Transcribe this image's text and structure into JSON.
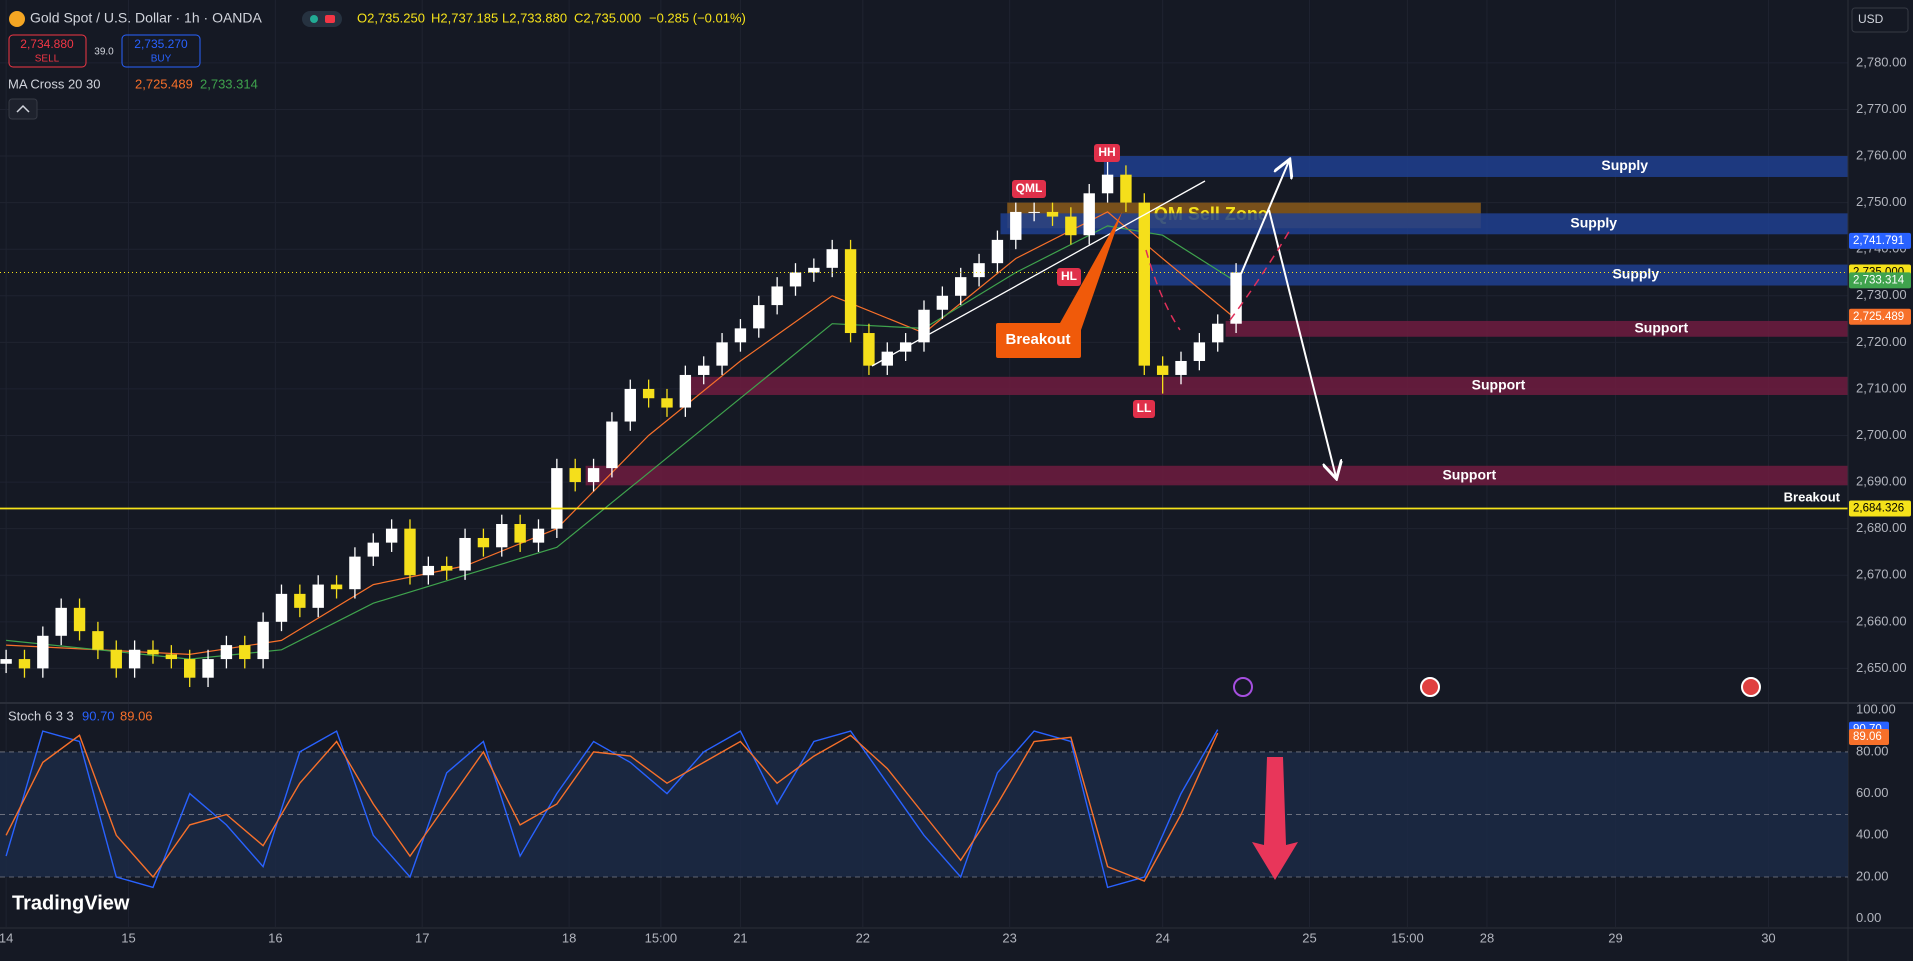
{
  "header": {
    "symbol": "Gold Spot / U.S. Dollar · 1h · OANDA",
    "open": "O2,735.250",
    "high": "H2,737.185",
    "low": "L2,733.880",
    "close": "C2,735.000",
    "change": "−0.285 (−0.01%)",
    "sell_price": "2,734.880",
    "sell": "SELL",
    "spread": "39.0",
    "buy_price": "2,735.270",
    "buy": "BUY",
    "indicator": "MA Cross 20 30",
    "ma_fast": "2,725.489",
    "ma_slow": "2,733.314",
    "stoch": "Stoch 6 3 3",
    "currency": "USD",
    "brand": "TradingView"
  },
  "annotations": {
    "hh": "HH",
    "qml": "QML",
    "hl": "HL",
    "ll": "LL",
    "breakout_callout": "Breakout",
    "breakout_line": "Breakout"
  },
  "chart_data": [
    {
      "type": "candlestick",
      "up_color": "#ffffff",
      "down_color": "#f5df1b",
      "grid": true,
      "xlim": [
        -1,
        301
      ],
      "xticks": [
        {
          "value": 0,
          "label": "14"
        },
        {
          "value": 20,
          "label": "15"
        },
        {
          "value": 44,
          "label": "16"
        },
        {
          "value": 68,
          "label": "17"
        },
        {
          "value": 92,
          "label": "18"
        },
        {
          "value": 107,
          "label": "15:00"
        },
        {
          "value": 120,
          "label": "21"
        },
        {
          "value": 140,
          "label": "22"
        },
        {
          "value": 164,
          "label": "23"
        },
        {
          "value": 189,
          "label": "24"
        },
        {
          "value": 213,
          "label": "25"
        },
        {
          "value": 229,
          "label": "15:00"
        },
        {
          "value": 242,
          "label": "28"
        },
        {
          "value": 263,
          "label": "29"
        },
        {
          "value": 288,
          "label": "30"
        }
      ],
      "ylim": [
        2643,
        2793.5
      ],
      "yticks": [
        {
          "value": 2650,
          "label": "2,650.00"
        },
        {
          "value": 2660,
          "label": "2,660.00"
        },
        {
          "value": 2670,
          "label": "2,670.00"
        },
        {
          "value": 2680,
          "label": "2,680.00"
        },
        {
          "value": 2690,
          "label": "2,690.00"
        },
        {
          "value": 2700,
          "label": "2,700.00"
        },
        {
          "value": 2710,
          "label": "2,710.00"
        },
        {
          "value": 2720,
          "label": "2,720.00"
        },
        {
          "value": 2730,
          "label": "2,730.00"
        },
        {
          "value": 2740,
          "label": "2,740.00"
        },
        {
          "value": 2750,
          "label": "2,750.00"
        },
        {
          "value": 2760,
          "label": "2,760.00"
        },
        {
          "value": 2770,
          "label": "2,770.00"
        },
        {
          "value": 2780,
          "label": "2,780.00"
        }
      ],
      "x": [
        0,
        3,
        6,
        9,
        12,
        15,
        18,
        21,
        24,
        27,
        30,
        33,
        36,
        39,
        42,
        45,
        48,
        51,
        54,
        57,
        60,
        63,
        66,
        69,
        72,
        75,
        78,
        81,
        84,
        87,
        90,
        93,
        96,
        99,
        102,
        105,
        108,
        111,
        114,
        117,
        120,
        123,
        126,
        129,
        132,
        135,
        138,
        141,
        144,
        147,
        150,
        153,
        156,
        159,
        162,
        165,
        168,
        171,
        174,
        177,
        180,
        183,
        186,
        189,
        192,
        195,
        198,
        201
      ],
      "open": [
        2651,
        2652,
        2650,
        2657,
        2663,
        2658,
        2654,
        2650,
        2654,
        2653,
        2652,
        2648,
        2652,
        2655,
        2652,
        2660,
        2666,
        2663,
        2668,
        2667,
        2674,
        2677,
        2680,
        2670,
        2672,
        2671,
        2678,
        2676,
        2681,
        2677,
        2680,
        2693,
        2690,
        2693,
        2703,
        2710,
        2708,
        2706,
        2713,
        2715,
        2720,
        2723,
        2728,
        2732,
        2735,
        2736,
        2740,
        2722,
        2715,
        2718,
        2720,
        2727,
        2730,
        2734,
        2737,
        2742,
        2748,
        2748,
        2747,
        2743,
        2752,
        2756,
        2750,
        2715,
        2713,
        2716,
        2720,
        2724
      ],
      "high": [
        2654,
        2654,
        2659,
        2665,
        2665,
        2660,
        2656,
        2656,
        2656,
        2655,
        2654,
        2654,
        2657,
        2657,
        2662,
        2668,
        2668,
        2670,
        2670,
        2676,
        2679,
        2682,
        2682,
        2674,
        2674,
        2680,
        2680,
        2683,
        2683,
        2682,
        2695,
        2695,
        2695,
        2705,
        2712,
        2712,
        2710,
        2715,
        2717,
        2722,
        2725,
        2730,
        2734,
        2737,
        2738,
        2742,
        2742,
        2724,
        2720,
        2722,
        2729,
        2732,
        2736,
        2739,
        2744,
        2750,
        2750,
        2750,
        2749,
        2754,
        2759,
        2758,
        2752,
        2717,
        2718,
        2722,
        2726,
        2737
      ],
      "low": [
        2649,
        2648,
        2648,
        2655,
        2656,
        2652,
        2648,
        2648,
        2651,
        2650,
        2646,
        2646,
        2650,
        2650,
        2650,
        2658,
        2661,
        2661,
        2665,
        2665,
        2672,
        2675,
        2668,
        2668,
        2669,
        2669,
        2674,
        2674,
        2675,
        2675,
        2678,
        2688,
        2688,
        2691,
        2701,
        2706,
        2704,
        2704,
        2711,
        2713,
        2718,
        2721,
        2726,
        2730,
        2733,
        2734,
        2720,
        2713,
        2713,
        2716,
        2718,
        2725,
        2728,
        2732,
        2735,
        2740,
        2746,
        2745,
        2741,
        2741,
        2750,
        2748,
        2713,
        2709,
        2711,
        2714,
        2718,
        2722
      ],
      "close": [
        2652,
        2650,
        2657,
        2663,
        2658,
        2654,
        2650,
        2654,
        2653,
        2652,
        2648,
        2652,
        2655,
        2652,
        2660,
        2666,
        2663,
        2668,
        2667,
        2674,
        2677,
        2680,
        2670,
        2672,
        2671,
        2678,
        2676,
        2681,
        2677,
        2680,
        2693,
        2690,
        2693,
        2703,
        2710,
        2708,
        2706,
        2713,
        2715,
        2720,
        2723,
        2728,
        2732,
        2735,
        2736,
        2740,
        2722,
        2715,
        2718,
        2720,
        2727,
        2730,
        2734,
        2737,
        2742,
        2748,
        2748,
        2747,
        2743,
        2752,
        2756,
        2750,
        2715,
        2713,
        2716,
        2720,
        2724,
        2735
      ],
      "series": [
        {
          "color": "#f7702a",
          "x": [
            0,
            30,
            45,
            60,
            75,
            90,
            105,
            120,
            135,
            150,
            165,
            180,
            189,
            201
          ],
          "values": [
            2655,
            2653,
            2656,
            2668,
            2672,
            2680,
            2700,
            2716,
            2730,
            2722,
            2738,
            2748,
            2738,
            2725
          ]
        },
        {
          "color": "#3fa34d",
          "x": [
            0,
            30,
            45,
            60,
            75,
            90,
            105,
            120,
            135,
            150,
            165,
            180,
            189,
            201
          ],
          "values": [
            2656,
            2652,
            2654,
            2664,
            2670,
            2676,
            2692,
            2708,
            2724,
            2723,
            2735,
            2745,
            2743,
            2733
          ]
        }
      ],
      "zones": [
        {
          "label": "Supply",
          "low": 2755.5,
          "high": 2760,
          "x0": 179.4,
          "x1": 301,
          "color": "#1f3f8f"
        },
        {
          "label": "QM Sell Zone",
          "low": 2744.5,
          "high": 2750,
          "x0": 163.6,
          "x1": 241,
          "color": "#8a5a1a"
        },
        {
          "label": "Supply",
          "low": 2743.2,
          "high": 2747.7,
          "x0": 162.5,
          "x1": 301,
          "color": "#1f3f8f"
        },
        {
          "label": "Supply",
          "low": 2732.2,
          "high": 2736.7,
          "x0": 185.4,
          "x1": 301,
          "color": "#1f3f8f"
        },
        {
          "label": "Support",
          "low": 2721.2,
          "high": 2724.6,
          "x0": 199.3,
          "x1": 301,
          "color": "#6e1c40"
        },
        {
          "label": "Support",
          "low": 2708.7,
          "high": 2712.6,
          "x0": 110.6,
          "x1": 301,
          "color": "#6e1c40"
        },
        {
          "label": "Support",
          "low": 2689.3,
          "high": 2693.5,
          "x0": 94.7,
          "x1": 301,
          "color": "#6e1c40"
        }
      ],
      "price_tags": [
        {
          "value": 2741.791,
          "label": "2,741.791",
          "color": "#2962ff",
          "text_color": "#ffffff"
        },
        {
          "value": 2735,
          "label": "2,735.000",
          "color": "#f5e21a",
          "text_color": "#000000",
          "line": "dotted"
        },
        {
          "value": 2733.314,
          "label": "2,733.314",
          "color": "#3fa34d",
          "text_color": "#ffffff"
        },
        {
          "value": 2725.489,
          "label": "2,725.489",
          "color": "#f7702a",
          "text_color": "#ffffff"
        },
        {
          "value": 2684.326,
          "label": "2,684.326",
          "color": "#f5e21a",
          "text_color": "#000000",
          "line": "solid"
        }
      ]
    },
    {
      "type": "line",
      "grid": true,
      "xlim": [
        -1,
        301
      ],
      "ylim": [
        -4,
        103
      ],
      "yticks": [
        {
          "value": 0,
          "label": "0.00"
        },
        {
          "value": 20,
          "label": "20.00"
        },
        {
          "value": 40,
          "label": "40.00"
        },
        {
          "value": 60,
          "label": "60.00"
        },
        {
          "value": 80,
          "label": "80.00"
        },
        {
          "value": 100,
          "label": "100.00"
        }
      ],
      "levels": [
        20,
        50,
        80
      ],
      "x": [
        0,
        6,
        12,
        18,
        24,
        30,
        36,
        42,
        48,
        54,
        60,
        66,
        72,
        78,
        84,
        90,
        96,
        102,
        108,
        114,
        120,
        126,
        132,
        138,
        144,
        150,
        156,
        162,
        168,
        174,
        180,
        186,
        192,
        198
      ],
      "series": [
        {
          "color": "#2962ff",
          "tag": {
            "value": 90.7,
            "label": "90.70"
          },
          "values": [
            30,
            90,
            85,
            20,
            15,
            60,
            45,
            25,
            80,
            90,
            40,
            20,
            70,
            85,
            30,
            60,
            85,
            75,
            60,
            80,
            90,
            55,
            85,
            90,
            65,
            40,
            20,
            70,
            90,
            85,
            15,
            20,
            60,
            90.7
          ]
        },
        {
          "color": "#f7702a",
          "tag": {
            "value": 89.06,
            "label": "89.06"
          },
          "values": [
            40,
            75,
            88,
            40,
            20,
            45,
            50,
            35,
            65,
            85,
            55,
            30,
            55,
            80,
            45,
            55,
            80,
            78,
            65,
            75,
            85,
            65,
            78,
            88,
            72,
            50,
            28,
            55,
            85,
            87,
            25,
            18,
            50,
            89.06
          ]
        }
      ]
    }
  ]
}
